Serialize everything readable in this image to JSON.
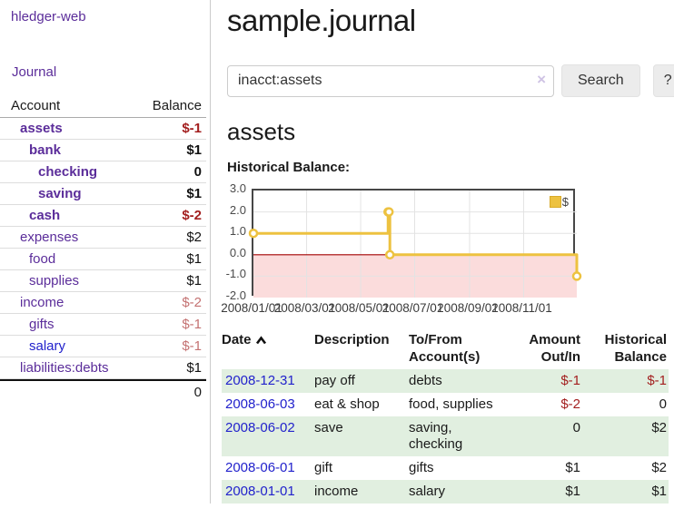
{
  "app": {
    "title": "hledger-web"
  },
  "sidebar": {
    "journal_link": "Journal",
    "table": {
      "account_header": "Account",
      "balance_header": "Balance"
    },
    "accounts": [
      {
        "name": "assets",
        "indent": 1,
        "bold": true,
        "link_style": "purple",
        "balance": "$-1",
        "balance_style": "neg-strong"
      },
      {
        "name": "bank",
        "indent": 2,
        "bold": true,
        "link_style": "purple",
        "balance": "$1",
        "balance_style": "plain"
      },
      {
        "name": "checking",
        "indent": 3,
        "bold": true,
        "link_style": "purple",
        "balance": "0",
        "balance_style": "plain"
      },
      {
        "name": "saving",
        "indent": 3,
        "bold": true,
        "link_style": "purple",
        "balance": "$1",
        "balance_style": "plain"
      },
      {
        "name": "cash",
        "indent": 2,
        "bold": true,
        "link_style": "purple",
        "balance": "$-2",
        "balance_style": "neg-strong"
      },
      {
        "name": "expenses",
        "indent": 1,
        "bold": false,
        "link_style": "purple",
        "balance": "$2",
        "balance_style": "plain"
      },
      {
        "name": "food",
        "indent": 2,
        "bold": false,
        "link_style": "purple",
        "balance": "$1",
        "balance_style": "plain"
      },
      {
        "name": "supplies",
        "indent": 2,
        "bold": false,
        "link_style": "purple",
        "balance": "$1",
        "balance_style": "plain"
      },
      {
        "name": "income",
        "indent": 1,
        "bold": false,
        "link_style": "purple",
        "balance": "$-2",
        "balance_style": "neg-muted"
      },
      {
        "name": "gifts",
        "indent": 2,
        "bold": false,
        "link_style": "purple",
        "balance": "$-1",
        "balance_style": "neg-muted"
      },
      {
        "name": "salary",
        "indent": 2,
        "bold": false,
        "link_style": "blue",
        "balance": "$-1",
        "balance_style": "neg-muted"
      },
      {
        "name": "liabilities:debts",
        "indent": 1,
        "bold": false,
        "link_style": "purple",
        "balance": "$1",
        "balance_style": "plain"
      }
    ],
    "total": "0"
  },
  "header": {
    "title": "sample.journal"
  },
  "search": {
    "value": "inacct:assets",
    "clear_label": "×",
    "button": "Search",
    "help_button": "?"
  },
  "account_page": {
    "title": "assets",
    "chart_label": "Historical Balance:"
  },
  "chart_data": {
    "type": "line",
    "step": true,
    "title": "Historical Balance:",
    "grid": true,
    "legend": [
      {
        "label": "$",
        "color": "#edc240"
      }
    ],
    "legend_position": "top-right",
    "ylim": [
      -2,
      3
    ],
    "yticks": [
      {
        "v": 3,
        "label": "3.0"
      },
      {
        "v": 2,
        "label": "2.0"
      },
      {
        "v": 1,
        "label": "1.0"
      },
      {
        "v": 0,
        "label": "0.0"
      },
      {
        "v": -1,
        "label": "-1.0"
      },
      {
        "v": -2,
        "label": "-2.0"
      }
    ],
    "xrange_days": [
      0,
      365
    ],
    "xticks": [
      {
        "day": 0,
        "label": "2008/01/01"
      },
      {
        "day": 60,
        "label": "2008/03/01"
      },
      {
        "day": 121,
        "label": "2008/05/01"
      },
      {
        "day": 182,
        "label": "2008/07/01"
      },
      {
        "day": 244,
        "label": "2008/09/01"
      },
      {
        "day": 305,
        "label": "2008/11/01"
      }
    ],
    "series": [
      {
        "name": "$",
        "color": "#edc240",
        "points": [
          {
            "date": "2008-01-01",
            "day": 0,
            "y": 1
          },
          {
            "date": "2008-06-01",
            "day": 152,
            "y": 2
          },
          {
            "date": "2008-06-02",
            "day": 153,
            "y": 2
          },
          {
            "date": "2008-06-03",
            "day": 154,
            "y": 0
          },
          {
            "date": "2008-12-31",
            "day": 365,
            "y": -1
          }
        ]
      }
    ],
    "negative_region_fill": "#fbdcdc",
    "zero_line_color": "#a40000",
    "gridline_color": "#e3e3e3"
  },
  "register": {
    "headers": {
      "date": "Date",
      "description": "Description",
      "account": "To/From Account(s)",
      "amount": "Amount Out/In",
      "balance": "Historical Balance"
    },
    "rows": [
      {
        "date": "2008-12-31",
        "description": "pay off",
        "account": "debts",
        "amount": "$-1",
        "amount_negative": true,
        "balance": "$-1",
        "balance_negative": true
      },
      {
        "date": "2008-06-03",
        "description": "eat & shop",
        "account": "food, supplies",
        "amount": "$-2",
        "amount_negative": true,
        "balance": "0",
        "balance_negative": false
      },
      {
        "date": "2008-06-02",
        "description": "save",
        "account": "saving, checking",
        "amount": "0",
        "amount_negative": false,
        "balance": "$2",
        "balance_negative": false
      },
      {
        "date": "2008-06-01",
        "description": "gift",
        "account": "gifts",
        "amount": "$1",
        "amount_negative": false,
        "balance": "$2",
        "balance_negative": false
      },
      {
        "date": "2008-01-01",
        "description": "income",
        "account": "salary",
        "amount": "$1",
        "amount_negative": false,
        "balance": "$1",
        "balance_negative": false
      }
    ]
  }
}
